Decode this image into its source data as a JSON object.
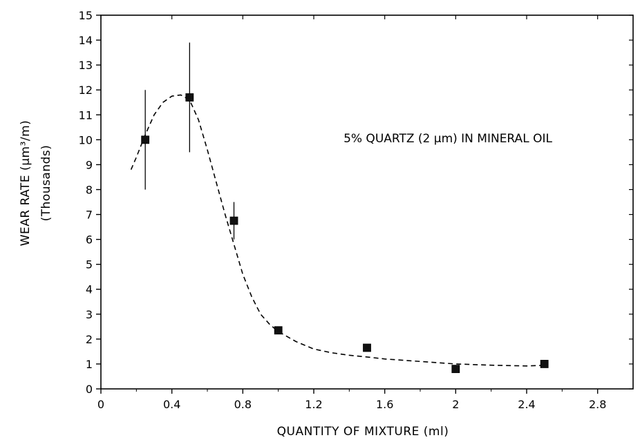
{
  "chart_data": {
    "type": "scatter",
    "title": "",
    "xlabel": "QUANTITY OF MIXTURE (ml)",
    "ylabel": "WEAR RATE (μm³/m)",
    "ylabel_sub": "(Thousands)",
    "annotation": "5% QUARTZ (2 μm) IN MINERAL OIL",
    "xlim": [
      0,
      3.0
    ],
    "ylim": [
      0,
      15
    ],
    "x_ticks": [
      0,
      0.4,
      0.8,
      1.2,
      1.6,
      2,
      2.4,
      2.8
    ],
    "x_tick_labels": [
      "0",
      "0.4",
      "0.8",
      "1.2",
      "1.6",
      "2",
      "2.4",
      "2.8"
    ],
    "y_ticks": [
      0,
      1,
      2,
      3,
      4,
      5,
      6,
      7,
      8,
      9,
      10,
      11,
      12,
      13,
      14,
      15
    ],
    "y_tick_labels": [
      "0",
      "1",
      "2",
      "3",
      "4",
      "5",
      "6",
      "7",
      "8",
      "9",
      "10",
      "11",
      "12",
      "13",
      "14",
      "15"
    ],
    "grid": false,
    "legend": "none",
    "points": [
      {
        "x": 0.25,
        "y": 10.0,
        "y_low": 8.0,
        "y_high": 12.0
      },
      {
        "x": 0.5,
        "y": 11.7,
        "y_low": 9.5,
        "y_high": 13.9
      },
      {
        "x": 0.75,
        "y": 6.75,
        "y_low": 6.0,
        "y_high": 7.5
      },
      {
        "x": 1.0,
        "y": 2.35
      },
      {
        "x": 1.5,
        "y": 1.65
      },
      {
        "x": 2.0,
        "y": 0.8
      },
      {
        "x": 2.5,
        "y": 1.0
      }
    ],
    "fit_curve": {
      "style": "dashed",
      "x": [
        0.17,
        0.2,
        0.25,
        0.3,
        0.35,
        0.4,
        0.45,
        0.5,
        0.55,
        0.6,
        0.65,
        0.7,
        0.75,
        0.8,
        0.85,
        0.9,
        0.95,
        1.0,
        1.1,
        1.2,
        1.3,
        1.4,
        1.5,
        1.6,
        1.8,
        2.0,
        2.2,
        2.4,
        2.52
      ],
      "y": [
        8.8,
        9.3,
        10.2,
        11.0,
        11.5,
        11.75,
        11.8,
        11.6,
        10.8,
        9.6,
        8.3,
        7.0,
        5.8,
        4.6,
        3.7,
        3.0,
        2.6,
        2.3,
        1.9,
        1.6,
        1.45,
        1.35,
        1.28,
        1.2,
        1.1,
        1.0,
        0.95,
        0.92,
        0.95
      ]
    },
    "colors": {
      "marker": "#111111",
      "line": "#000000"
    }
  }
}
